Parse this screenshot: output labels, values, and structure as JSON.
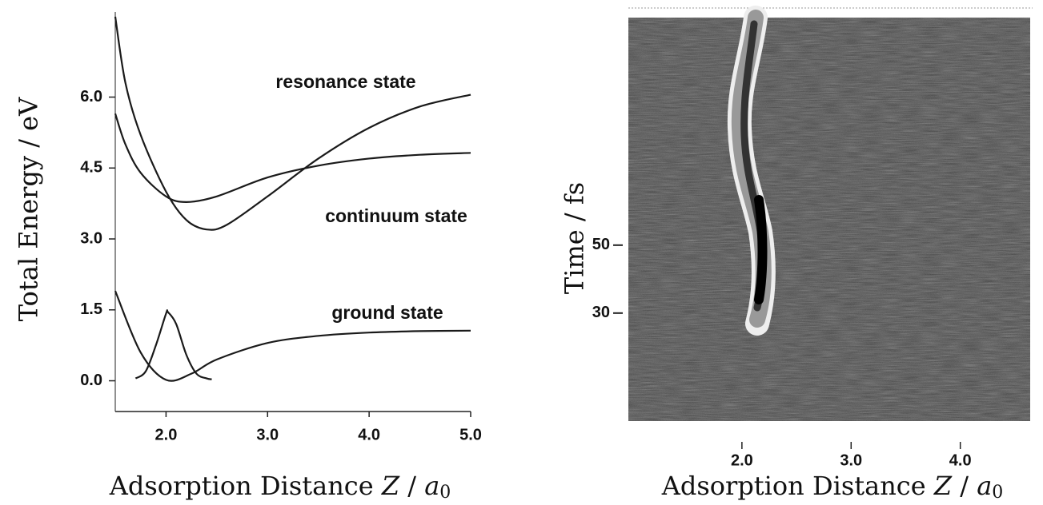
{
  "chart_data": [
    {
      "type": "line",
      "ylabel": "Total Energy / eV",
      "xlabel": [
        "Adsorption Distance ",
        "Z",
        " / ",
        "a",
        "0"
      ],
      "xlim": [
        1.5,
        5.0
      ],
      "xticks": [
        {
          "value": 2,
          "label": "2.0"
        },
        {
          "value": 3,
          "label": "3.0"
        },
        {
          "value": 4,
          "label": "4.0"
        },
        {
          "value": 5,
          "label": "5.0"
        }
      ],
      "ylim": [
        -0.65,
        7.8
      ],
      "yticks": [
        {
          "value": 0,
          "label": "0.0"
        },
        {
          "value": 1.5,
          "label": "1.5"
        },
        {
          "value": 3,
          "label": "3.0"
        },
        {
          "value": 4.5,
          "label": "4.5"
        },
        {
          "value": 6,
          "label": "6.0"
        }
      ],
      "annotations": [
        "resonance state",
        "continuum state",
        "ground state"
      ],
      "series": [
        {
          "color": "#1a1a1a",
          "x": [
            1.5,
            1.6,
            1.75,
            2.0,
            2.2,
            2.4,
            2.6,
            3.0,
            3.5,
            4.0,
            4.5,
            5.0
          ],
          "values": [
            7.7,
            6.3,
            5.2,
            4.0,
            3.4,
            3.2,
            3.3,
            3.9,
            4.7,
            5.35,
            5.8,
            6.05
          ]
        },
        {
          "color": "#1a1a1a",
          "x": [
            1.5,
            1.6,
            1.75,
            2.0,
            2.2,
            2.5,
            3.0,
            3.5,
            4.0,
            4.5,
            5.0
          ],
          "values": [
            5.65,
            5.0,
            4.4,
            3.9,
            3.78,
            3.9,
            4.3,
            4.55,
            4.7,
            4.78,
            4.82
          ]
        },
        {
          "color": "#1a1a1a",
          "x": [
            1.5,
            1.75,
            2.0,
            2.25,
            2.5,
            3.0,
            3.5,
            4.0,
            4.5,
            5.0
          ],
          "values": [
            1.9,
            0.6,
            0.02,
            0.15,
            0.45,
            0.8,
            0.95,
            1.02,
            1.05,
            1.06
          ]
        },
        {
          "color": "#1a1a1a",
          "x": [
            1.7,
            1.8,
            1.9,
            2.0,
            2.02,
            2.1,
            2.2,
            2.3,
            2.4,
            2.45
          ],
          "values": [
            0.05,
            0.2,
            0.75,
            1.42,
            1.45,
            1.2,
            0.55,
            0.15,
            0.05,
            0.03
          ]
        }
      ]
    },
    {
      "type": "heatmap",
      "ylabel": "Time / fs",
      "xlabel": [
        "Adsorption Distance ",
        "Z",
        " / ",
        "a",
        "0"
      ],
      "xlim": [
        0.96,
        4.64
      ],
      "xticks": [
        {
          "value": 2,
          "label": "2.0"
        },
        {
          "value": 3,
          "label": "3.0"
        },
        {
          "value": 4,
          "label": "4.0"
        }
      ],
      "ylim": [
        -1.8,
        117
      ],
      "yticks": [
        30,
        50
      ]
    }
  ]
}
